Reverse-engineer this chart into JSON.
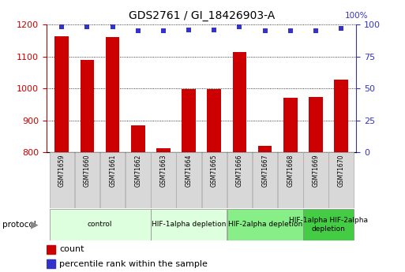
{
  "title": "GDS2761 / GI_18426903-A",
  "samples": [
    "GSM71659",
    "GSM71660",
    "GSM71661",
    "GSM71662",
    "GSM71663",
    "GSM71664",
    "GSM71665",
    "GSM71666",
    "GSM71667",
    "GSM71668",
    "GSM71669",
    "GSM71670"
  ],
  "counts": [
    1163,
    1090,
    1160,
    885,
    812,
    997,
    997,
    1113,
    820,
    970,
    972,
    1028
  ],
  "percentile_ranks": [
    98,
    98,
    98,
    95,
    95,
    96,
    96,
    98,
    95,
    95,
    95,
    97
  ],
  "ylim_left": [
    800,
    1200
  ],
  "ylim_right": [
    0,
    100
  ],
  "yticks_left": [
    800,
    900,
    1000,
    1100,
    1200
  ],
  "yticks_right": [
    0,
    25,
    50,
    75,
    100
  ],
  "bar_color": "#cc0000",
  "dot_color": "#3333cc",
  "protocol_groups": [
    {
      "label": "control",
      "indices": [
        0,
        1,
        2,
        3
      ],
      "color": "#ddffdd"
    },
    {
      "label": "HIF-1alpha depletion",
      "indices": [
        4,
        5,
        6
      ],
      "color": "#ddffdd"
    },
    {
      "label": "HIF-2alpha depletion",
      "indices": [
        7,
        8,
        9
      ],
      "color": "#88ee88"
    },
    {
      "label": "HIF-1alpha HIF-2alpha\ndepletion",
      "indices": [
        10,
        11
      ],
      "color": "#44cc44"
    }
  ],
  "bar_width": 0.55,
  "title_fontsize": 10,
  "sample_fontsize": 5.5,
  "proto_fontsize": 6.5,
  "legend_fontsize": 8
}
